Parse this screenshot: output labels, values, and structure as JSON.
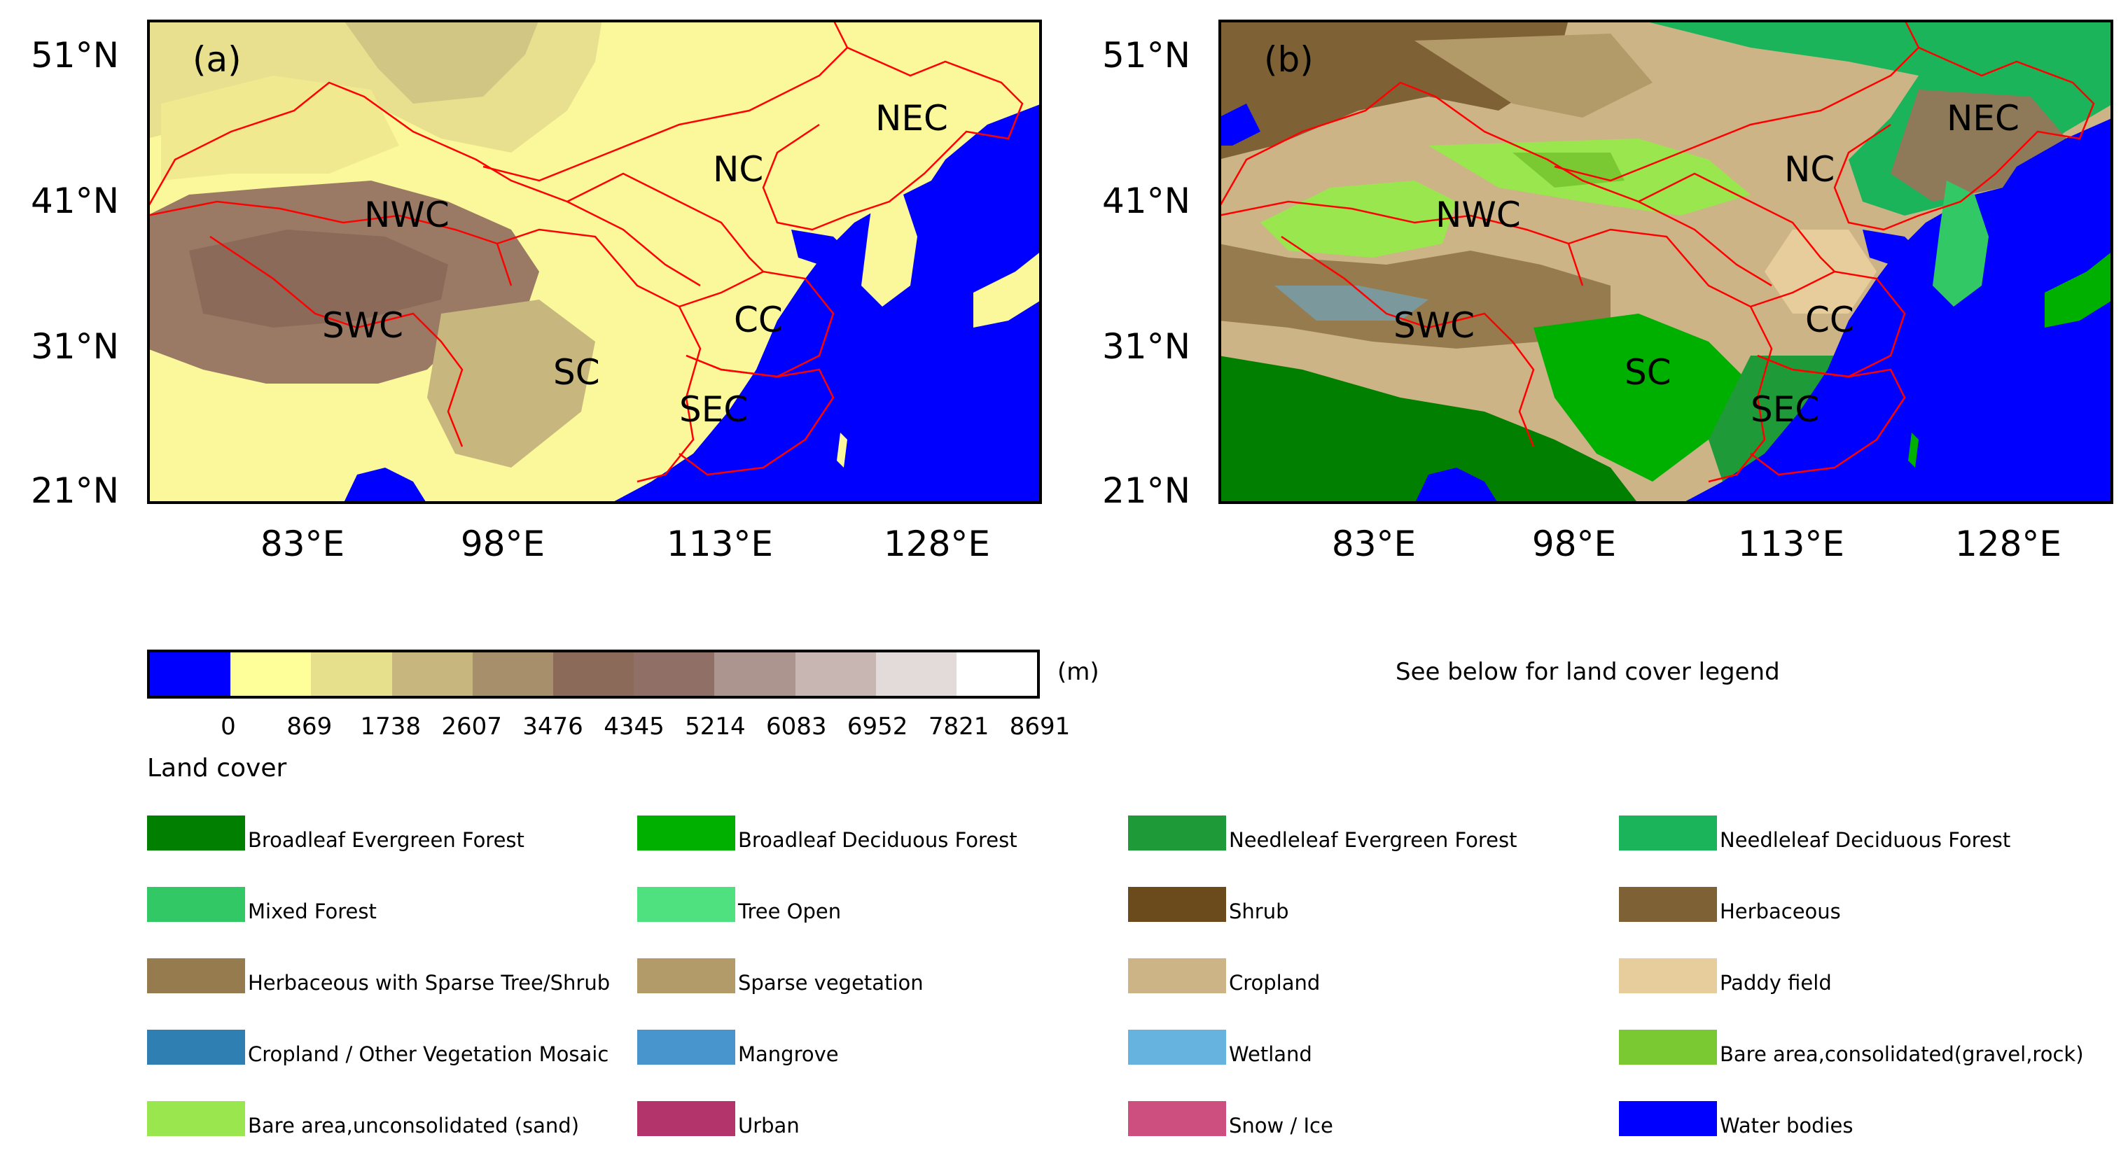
{
  "panel_a": {
    "tag": "(a)",
    "regions": [
      {
        "id": "nwc",
        "label": "NWC"
      },
      {
        "id": "nc",
        "label": "NC"
      },
      {
        "id": "nec",
        "label": "NEC"
      },
      {
        "id": "swc",
        "label": "SWC"
      },
      {
        "id": "sc",
        "label": "SC"
      },
      {
        "id": "cc",
        "label": "CC"
      },
      {
        "id": "sec",
        "label": "SEC"
      }
    ]
  },
  "panel_b": {
    "tag": "(b)",
    "regions": [
      {
        "id": "nwc",
        "label": "NWC"
      },
      {
        "id": "nc",
        "label": "NC"
      },
      {
        "id": "nec",
        "label": "NEC"
      },
      {
        "id": "swc",
        "label": "SWC"
      },
      {
        "id": "sc",
        "label": "SC"
      },
      {
        "id": "cc",
        "label": "CC"
      },
      {
        "id": "sec",
        "label": "SEC"
      }
    ]
  },
  "axes": {
    "lat_ticks": [
      "51°N",
      "41°N",
      "31°N",
      "21°N"
    ],
    "lon_ticks": [
      "83°E",
      "98°E",
      "113°E",
      "128°E"
    ]
  },
  "colorbar": {
    "unit": "(m)",
    "ticks": [
      "0",
      "869",
      "1738",
      "2607",
      "3476",
      "4345",
      "5214",
      "6083",
      "6952",
      "7821",
      "8691"
    ],
    "colors": [
      "#0000ff",
      "#ffff99",
      "#e6df8c",
      "#c7b67e",
      "#a68f6a",
      "#8c6a5a",
      "#8f6f66",
      "#ad958f",
      "#c8b6b2",
      "#e3dbda",
      "#ffffff"
    ]
  },
  "side_note": "See below for land cover legend",
  "land_cover": {
    "title": "Land cover",
    "items": [
      {
        "label": "Broadleaf Evergreen Forest",
        "color": "#007f00"
      },
      {
        "label": "Broadleaf Deciduous Forest",
        "color": "#00b000"
      },
      {
        "label": "Needleleaf Evergreen Forest",
        "color": "#1f9a38"
      },
      {
        "label": "Needleleaf Deciduous Forest",
        "color": "#1bb45a"
      },
      {
        "label": "Mixed Forest",
        "color": "#33c866"
      },
      {
        "label": "Tree Open",
        "color": "#4fe080"
      },
      {
        "label": "Shrub",
        "color": "#6b4a1b"
      },
      {
        "label": "Herbaceous",
        "color": "#7f6136"
      },
      {
        "label": "Herbaceous with Sparse Tree/Shrub",
        "color": "#957b4d"
      },
      {
        "label": "Sparse vegetation",
        "color": "#b39a69"
      },
      {
        "label": "Cropland",
        "color": "#cdb486"
      },
      {
        "label": "Paddy field",
        "color": "#e6cd9b"
      },
      {
        "label": "Cropland / Other Vegetation Mosaic",
        "color": "#2f7fb3"
      },
      {
        "label": "Mangrove",
        "color": "#4795cc"
      },
      {
        "label": "Wetland",
        "color": "#66b3e0"
      },
      {
        "label": "Bare area,consolidated(gravel,rock)",
        "color": "#7ac832"
      },
      {
        "label": "Bare area,unconsolidated (sand)",
        "color": "#9ae64f"
      },
      {
        "label": "Urban",
        "color": "#b3336b"
      },
      {
        "label": "Snow / Ice",
        "color": "#cc4f80"
      },
      {
        "label": "Water bodies",
        "color": "#0000ff"
      }
    ]
  }
}
